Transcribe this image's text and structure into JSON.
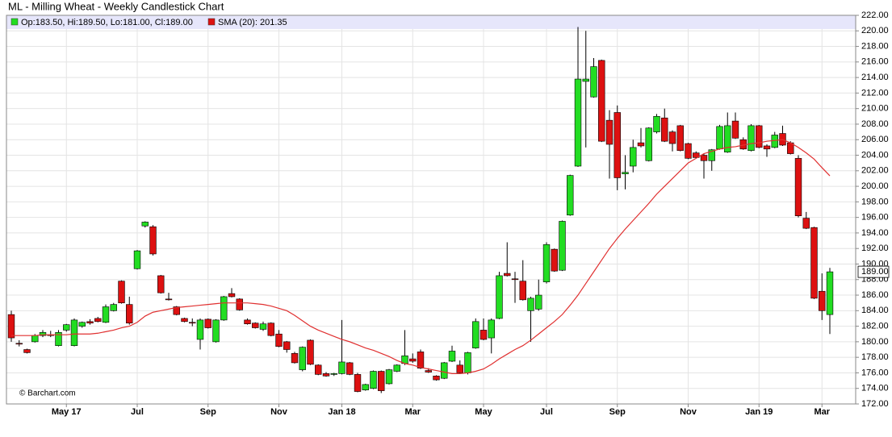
{
  "chart_data": {
    "type": "candlestick",
    "title": "ML - Milling Wheat - Weekly Candlestick Chart",
    "watermark": "© Barchart.com",
    "ohlc_legend": "Op:183.50, Hi:189.50, Lo:181.00, Cl:189.00",
    "up_color": "#22dd22",
    "down_color": "#dd1111",
    "grid": true,
    "categories": [
      null,
      null,
      null,
      null,
      null,
      null,
      null,
      "May 17",
      null,
      null,
      null,
      null,
      null,
      null,
      null,
      null,
      "Jul",
      null,
      null,
      null,
      null,
      null,
      null,
      null,
      null,
      "Sep",
      null,
      null,
      null,
      null,
      null,
      null,
      null,
      null,
      "Nov",
      null,
      null,
      null,
      null,
      null,
      null,
      null,
      "Jan 18",
      null,
      null,
      null,
      null,
      null,
      null,
      null,
      null,
      "Mar",
      null,
      null,
      null,
      null,
      null,
      null,
      null,
      null,
      "May",
      null,
      null,
      null,
      null,
      null,
      null,
      null,
      "Jul",
      null,
      null,
      null,
      null,
      null,
      null,
      null,
      null,
      "Sep",
      null,
      null,
      null,
      null,
      null,
      null,
      null,
      null,
      "Nov",
      null,
      null,
      null,
      null,
      null,
      null,
      null,
      null,
      "Jan 19",
      null,
      null,
      null,
      null,
      null,
      null,
      null,
      "Mar",
      null
    ],
    "open": [
      183.5,
      179.8,
      179,
      180,
      180.8,
      180.9,
      179.5,
      181.5,
      179.5,
      182,
      182.6,
      183,
      182.5,
      184,
      187.8,
      184.8,
      189.4,
      194.9,
      194.8,
      188.5,
      185.5,
      184.5,
      183,
      182.5,
      180.3,
      182.9,
      180,
      182.8,
      186.2,
      185.5,
      182.8,
      182.4,
      181.6,
      182.4,
      181,
      180,
      178.5,
      176.4,
      180.2,
      177,
      175.9,
      175.8,
      175.9,
      177.3,
      175.8,
      173.8,
      174,
      176.2,
      174.6,
      176.2,
      177.2,
      177.8,
      178.7,
      176.3,
      175.6,
      175.3,
      177.5,
      177,
      176,
      179.2,
      181.5,
      180.5,
      183,
      188.8,
      188.1,
      187.8,
      184,
      184.2,
      187.7,
      191.9,
      189.2,
      196.3,
      202.6,
      213.5,
      211.5,
      216.2,
      208.5,
      209.5,
      201.6,
      202.6,
      205.6,
      203.3,
      207,
      208.8,
      207,
      207.8,
      205.5,
      204.3,
      204,
      203.3,
      204.8,
      204.4,
      208.4,
      206,
      204.6,
      207.8,
      205.2,
      205,
      206.8,
      205.6,
      203.6,
      195.9,
      194.7,
      186.5,
      183.5
    ],
    "high": [
      184,
      180.2,
      179.1,
      181,
      181.5,
      181.4,
      181.5,
      182.3,
      183,
      182.6,
      182.9,
      183.2,
      184.8,
      185,
      187.9,
      185.8,
      191.8,
      195.5,
      195,
      188.6,
      186.3,
      184.6,
      183.1,
      183,
      183,
      183,
      182.9,
      185.9,
      186.9,
      185.6,
      183,
      182.5,
      182.6,
      182.5,
      181.5,
      180.1,
      178.7,
      179.4,
      180.3,
      177.1,
      176.1,
      176,
      182.8,
      177.4,
      176,
      174.6,
      176.3,
      176.3,
      176.5,
      177.1,
      181.5,
      178.5,
      179,
      176.6,
      175.7,
      177.4,
      179.5,
      177.6,
      178.7,
      183,
      183,
      183,
      189,
      192.8,
      189,
      190.5,
      185.8,
      188,
      192.8,
      192,
      195.6,
      201.5,
      220.5,
      220,
      216.5,
      216.3,
      209.8,
      210.4,
      204,
      206,
      207.5,
      207.6,
      209.3,
      210,
      207.2,
      207.9,
      205.6,
      204.5,
      204.2,
      204.8,
      207.9,
      209.5,
      209.5,
      206.3,
      208,
      207.9,
      205.4,
      207,
      207.8,
      205.8,
      204,
      196.7,
      194.8,
      188.8,
      189.5
    ],
    "low": [
      180,
      179.4,
      178.5,
      179.9,
      180.6,
      180.6,
      179.4,
      181.3,
      179.4,
      181.8,
      182.2,
      182.5,
      182.4,
      183.9,
      184.9,
      182.2,
      189.3,
      194.7,
      191.1,
      186.2,
      185.3,
      183.4,
      182.5,
      182,
      179,
      181.7,
      179.9,
      182.7,
      185.7,
      184,
      182.2,
      181.7,
      181.4,
      180.7,
      179.3,
      178.6,
      177.2,
      176.2,
      177,
      175.7,
      175.5,
      175.6,
      175.8,
      175.7,
      173.5,
      173.7,
      173.9,
      173.4,
      174.5,
      176.1,
      177,
      177.3,
      176.5,
      176,
      175,
      175.2,
      177.4,
      175.9,
      175.8,
      179.1,
      180.2,
      178.5,
      182.9,
      188.4,
      185,
      185.3,
      180,
      184,
      187.5,
      189,
      189.1,
      196.2,
      202.5,
      205,
      211.4,
      205.7,
      201,
      199.5,
      199.6,
      201.8,
      205,
      203.2,
      206.8,
      205.7,
      204.5,
      204.5,
      203.5,
      203.6,
      201,
      202,
      204.7,
      204.3,
      206.1,
      204.7,
      204.5,
      204.9,
      203.8,
      204.9,
      205.2,
      204.1,
      196,
      194.5,
      185.5,
      182.8,
      181
    ],
    "close": [
      180.5,
      179.7,
      178.6,
      180.8,
      181.2,
      180.8,
      181.2,
      182.2,
      182.8,
      182.5,
      182.4,
      182.6,
      184.5,
      184.8,
      185,
      182.4,
      191.7,
      195.4,
      191.3,
      186.3,
      185.4,
      183.5,
      182.6,
      182.4,
      182.8,
      181.8,
      182.8,
      185.8,
      185.8,
      184.1,
      182.3,
      181.8,
      182.3,
      180.8,
      179.4,
      179,
      177.3,
      179.3,
      177.1,
      175.8,
      175.6,
      175.9,
      177.4,
      175.8,
      173.6,
      174.5,
      176.2,
      173.7,
      176.4,
      177,
      178.2,
      177.5,
      176.6,
      176.1,
      175.1,
      177.3,
      178.8,
      176,
      178.6,
      182.6,
      180.3,
      182.8,
      188.5,
      188.5,
      188,
      185.4,
      185.6,
      186,
      192.5,
      189.1,
      195.5,
      201.4,
      213.8,
      213.8,
      215.4,
      205.8,
      205.4,
      201.1,
      201.8,
      205,
      205.2,
      207.5,
      209,
      205.8,
      205.5,
      204.6,
      203.6,
      203.7,
      203.3,
      204.7,
      207.7,
      207.8,
      206.2,
      204.8,
      207.8,
      205,
      204.8,
      206.6,
      205.3,
      204.2,
      196.2,
      194.6,
      185.6,
      184,
      189
    ],
    "sma": {
      "name": "SMA (20): 201.35",
      "color": "#e03030",
      "values": [
        180.8,
        180.8,
        180.8,
        180.8,
        180.9,
        180.9,
        180.9,
        180.9,
        181,
        181,
        181,
        181.1,
        181.3,
        181.5,
        181.8,
        182,
        182.5,
        183.3,
        183.8,
        184,
        184.2,
        184.4,
        184.5,
        184.6,
        184.7,
        184.8,
        184.9,
        185,
        185,
        185,
        185,
        184.9,
        184.8,
        184.6,
        184.3,
        184,
        183.4,
        182.7,
        182,
        181.5,
        181.1,
        180.7,
        180.3,
        180,
        179.6,
        179.2,
        178.9,
        178.5,
        178.1,
        177.6,
        177.2,
        177,
        176.7,
        176.5,
        176.3,
        176.1,
        175.9,
        175.9,
        176,
        176.2,
        176.5,
        177.1,
        177.8,
        178.4,
        179,
        179.5,
        180.2,
        181,
        181.8,
        182.6,
        183.5,
        184.7,
        186,
        187.5,
        189,
        190.5,
        192,
        193.3,
        194.5,
        195.6,
        196.7,
        197.8,
        199,
        200,
        201,
        202,
        203,
        203.6,
        204.2,
        204.5,
        204.8,
        205,
        205.1,
        205.3,
        205.5,
        205.6,
        205.8,
        205.9,
        206,
        205.6,
        205,
        204.3,
        203.5,
        202.4,
        201.35
      ]
    },
    "last_label": {
      "value": 189,
      "label": "189.00"
    },
    "ylim": [
      172,
      222
    ],
    "yticks": [
      {
        "value": 172,
        "label": "172.00"
      },
      {
        "value": 174,
        "label": "174.00"
      },
      {
        "value": 176,
        "label": "176.00"
      },
      {
        "value": 178,
        "label": "178.00"
      },
      {
        "value": 180,
        "label": "180.00"
      },
      {
        "value": 182,
        "label": "182.00"
      },
      {
        "value": 184,
        "label": "184.00"
      },
      {
        "value": 186,
        "label": "186.00"
      },
      {
        "value": 188,
        "label": "188.00"
      },
      {
        "value": 190,
        "label": "190.00"
      },
      {
        "value": 192,
        "label": "192.00"
      },
      {
        "value": 194,
        "label": "194.00"
      },
      {
        "value": 196,
        "label": "196.00"
      },
      {
        "value": 198,
        "label": "198.00"
      },
      {
        "value": 200,
        "label": "200.00"
      },
      {
        "value": 202,
        "label": "202.00"
      },
      {
        "value": 204,
        "label": "204.00"
      },
      {
        "value": 206,
        "label": "206.00"
      },
      {
        "value": 208,
        "label": "208.00"
      },
      {
        "value": 210,
        "label": "210.00"
      },
      {
        "value": 212,
        "label": "212.00"
      },
      {
        "value": 214,
        "label": "214.00"
      },
      {
        "value": 216,
        "label": "216.00"
      },
      {
        "value": 218,
        "label": "218.00"
      },
      {
        "value": 220,
        "label": "220.00"
      },
      {
        "value": 222,
        "label": "222.00"
      }
    ]
  }
}
